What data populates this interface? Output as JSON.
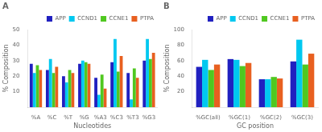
{
  "chart_data": [
    {
      "type": "bar",
      "title": "A",
      "categories": [
        "%A",
        "%C",
        "%T",
        "%G",
        "%A3",
        "%C3",
        "%T3",
        "%G3"
      ],
      "series": [
        {
          "name": "APP",
          "color": "#2020c0",
          "values": [
            28,
            24,
            20,
            28,
            19,
            29,
            22,
            30
          ]
        },
        {
          "name": "CCND1",
          "color": "#00c8f0",
          "values": [
            22,
            31,
            16,
            30,
            8,
            44,
            5,
            44
          ]
        },
        {
          "name": "CCNE1",
          "color": "#50c820",
          "values": [
            27,
            22,
            24,
            29,
            21,
            23,
            25,
            31
          ]
        },
        {
          "name": "PTPA",
          "color": "#e86020",
          "values": [
            24,
            26,
            22,
            28,
            12,
            33,
            19,
            35
          ]
        }
      ],
      "xlabel": "Nucleotides",
      "ylabel": "% Composition",
      "ylim": [
        0,
        50
      ],
      "yticks": [
        10,
        20,
        30,
        40,
        50
      ],
      "grid": false,
      "legend": "upper right"
    },
    {
      "type": "bar",
      "title": "B",
      "categories": [
        "%GC(all)",
        "%GC(1)",
        "%GC(2)",
        "%GC(3)"
      ],
      "series": [
        {
          "name": "APP",
          "color": "#2020c0",
          "values": [
            52,
            62,
            36,
            59
          ]
        },
        {
          "name": "CCND1",
          "color": "#00c8f0",
          "values": [
            61,
            61,
            36,
            87
          ]
        },
        {
          "name": "CCNE1",
          "color": "#50c820",
          "values": [
            48,
            53,
            39,
            55
          ]
        },
        {
          "name": "PTPA",
          "color": "#e86020",
          "values": [
            55,
            57,
            37,
            69
          ]
        }
      ],
      "xlabel": "GC position",
      "ylabel": "% Composition",
      "ylim": [
        0,
        100
      ],
      "yticks": [
        20,
        40,
        60,
        80,
        100
      ],
      "grid": false,
      "legend": "upper right"
    }
  ]
}
